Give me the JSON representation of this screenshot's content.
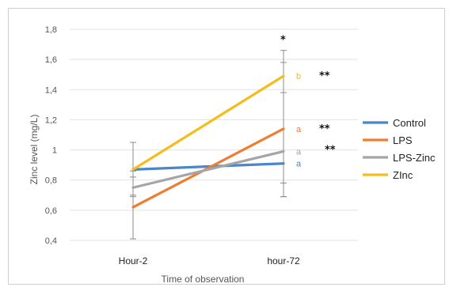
{
  "chart_data": {
    "type": "line",
    "categories": [
      "Hour-2",
      "hour-72"
    ],
    "xlabel": "Time of observation",
    "ylabel": "Zinc level (mg/L)",
    "ylim": [
      0.4,
      1.8
    ],
    "yticks": [
      "0,4",
      "0,6",
      "0,8",
      "1",
      "1,2",
      "1,4",
      "1,6",
      "1,8"
    ],
    "ytick_values": [
      0.4,
      0.6,
      0.8,
      1.0,
      1.2,
      1.4,
      1.6,
      1.8
    ],
    "grid": true,
    "legend_position": "right",
    "series": [
      {
        "name": "Control",
        "values": [
          0.87,
          0.91
        ],
        "color": "#4a86c8",
        "letter": "a",
        "error": [
          [
            0.87,
            0.87
          ],
          [
            0.91,
            0.91
          ]
        ]
      },
      {
        "name": "LPS",
        "values": [
          0.62,
          1.14
        ],
        "color": "#ed7d31",
        "letter": "a",
        "error": [
          [
            0.41,
            0.86
          ],
          [
            0.69,
            1.58
          ]
        ]
      },
      {
        "name": "LPS-Zinc",
        "values": [
          0.75,
          0.99
        ],
        "color": "#a5a5a5",
        "letter": "a",
        "error": [
          [
            0.7,
            0.82
          ],
          [
            0.78,
            1.38
          ]
        ]
      },
      {
        "name": "ZInc",
        "values": [
          0.87,
          1.49
        ],
        "color": "#f5bd1c",
        "letter": "b",
        "error": [
          [
            0.69,
            1.05
          ],
          [
            0.69,
            1.66
          ]
        ]
      }
    ],
    "annotations": [
      {
        "text": "*",
        "x": "hour-72",
        "y": 1.73
      },
      {
        "text": "**",
        "x": "hour-72",
        "y": 1.49
      },
      {
        "text": "**",
        "x": "hour-72",
        "y": 1.14
      },
      {
        "text": "**",
        "x": "hour-72",
        "y": 1.0
      }
    ]
  }
}
